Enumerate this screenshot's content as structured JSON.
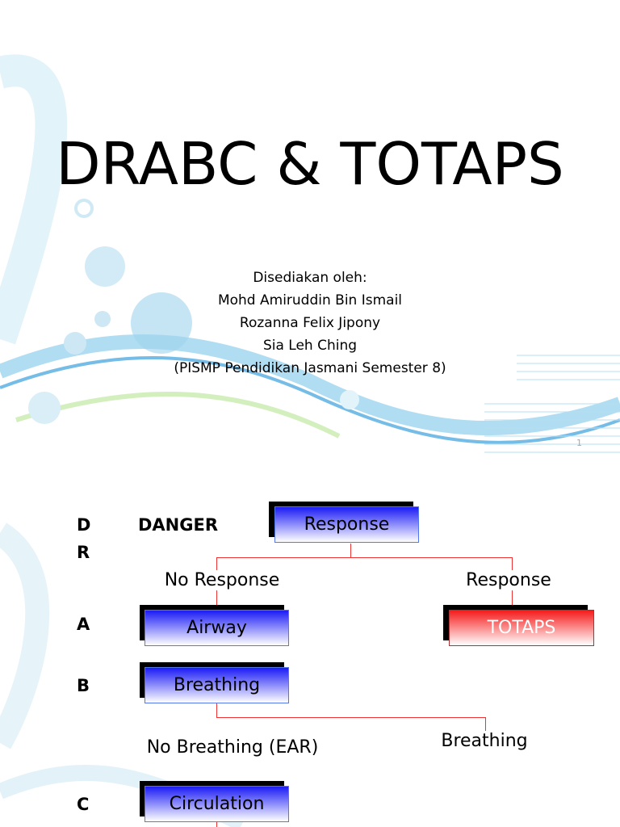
{
  "slide1": {
    "title": "DRABC & TOTAPS",
    "credits": [
      "Disediakan oleh:",
      "Mohd Amiruddin Bin Ismail",
      "Rozanna Felix Jipony",
      "Sia Leh Ching",
      "(PISMP Pendidikan Jasmani Semester 8)"
    ],
    "page_number": "1"
  },
  "slide2": {
    "letters": [
      "D",
      "R",
      "A",
      "B",
      "C"
    ],
    "danger": "DANGER",
    "boxes": {
      "response": "Response",
      "airway": "Airway",
      "totaps": "TOTAPS",
      "breathing": "Breathing",
      "circulation": "Circulation"
    },
    "labels": {
      "no_response": "No Response",
      "response": "Response",
      "no_breathing": "No Breathing (EAR)",
      "breathing": "Breathing"
    },
    "colors": {
      "blue_box": "#1b1bf5",
      "red_box": "#f51b1b",
      "connector": "#e33333"
    }
  }
}
